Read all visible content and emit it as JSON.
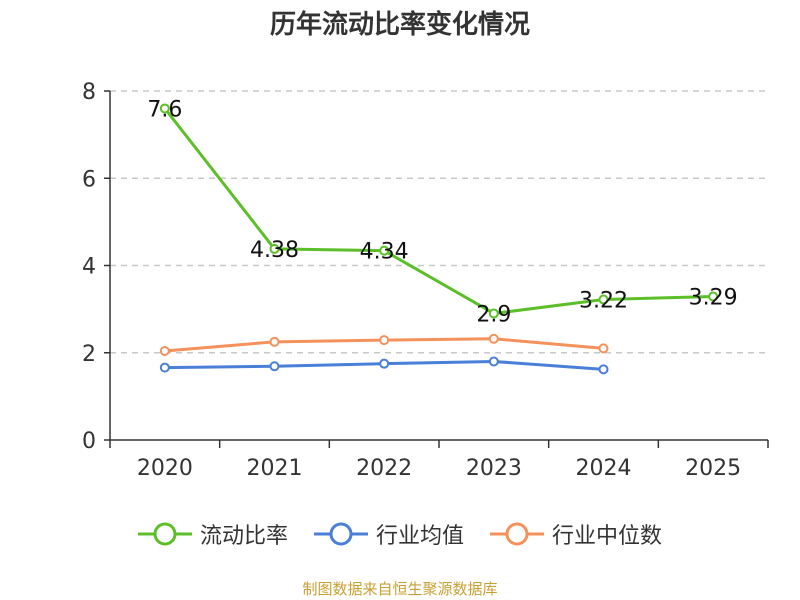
{
  "chart_data": {
    "type": "line",
    "title": "历年流动比率变化情况",
    "categories": [
      "2020",
      "2021",
      "2022",
      "2023",
      "2024",
      "2025"
    ],
    "ylim": [
      0,
      8
    ],
    "yticks": [
      "0",
      "2",
      "4",
      "6",
      "8"
    ],
    "grid": true,
    "legend_position": "bottom",
    "series": [
      {
        "name": "流动比率",
        "color": "#5cbf2a",
        "values": [
          7.6,
          4.38,
          4.34,
          2.9,
          3.22,
          3.29
        ],
        "labels": [
          "7.6",
          "4.38",
          "4.34",
          "2.9",
          "3.22",
          "3.29"
        ]
      },
      {
        "name": "行业均值",
        "color": "#4a7fd8",
        "values": [
          1.66,
          1.69,
          1.75,
          1.8,
          1.62,
          null
        ]
      },
      {
        "name": "行业中位数",
        "color": "#f5915a",
        "values": [
          2.04,
          2.25,
          2.29,
          2.32,
          2.1,
          null
        ]
      }
    ],
    "source": "制图数据来自恒生聚源数据库"
  }
}
